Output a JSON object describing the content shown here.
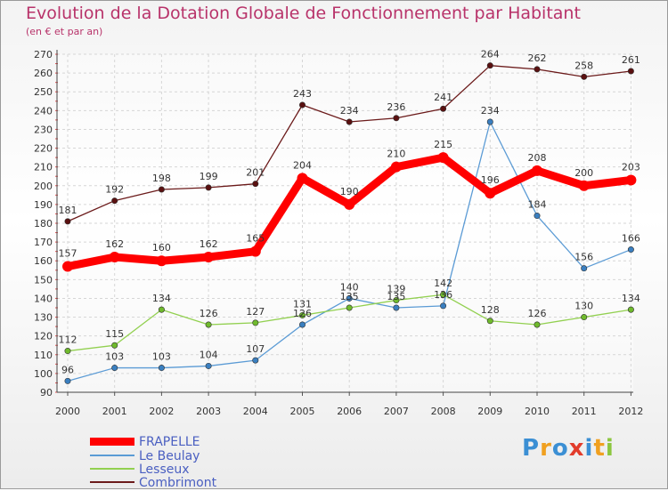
{
  "chart_data": {
    "type": "line",
    "title": "Evolution de la Dotation Globale de Fonctionnement par Habitant",
    "subtitle": "(en € et par an)",
    "xlabel": "",
    "ylabel": "",
    "x": [
      "2000",
      "2001",
      "2002",
      "2003",
      "2004",
      "2005",
      "2006",
      "2007",
      "2008",
      "2009",
      "2010",
      "2011",
      "2012"
    ],
    "ylim": [
      90,
      270
    ],
    "yticks": [
      90,
      100,
      110,
      120,
      130,
      140,
      150,
      160,
      170,
      180,
      190,
      200,
      210,
      220,
      230,
      240,
      250,
      260,
      270
    ],
    "grid": true,
    "series": [
      {
        "name": "FRAPELLE",
        "color": "#ff0000",
        "values": [
          157,
          162,
          160,
          162,
          165,
          204,
          190,
          210,
          215,
          196,
          208,
          200,
          203
        ]
      },
      {
        "name": "Le Beulay",
        "color": "#5b9bd5",
        "values": [
          96,
          103,
          103,
          104,
          107,
          126,
          140,
          135,
          136,
          234,
          184,
          156,
          166
        ]
      },
      {
        "name": "Lesseux",
        "color": "#92d050",
        "values": [
          112,
          115,
          134,
          126,
          127,
          131,
          135,
          139,
          142,
          128,
          126,
          130,
          134
        ]
      },
      {
        "name": "Combrimont",
        "color": "#6b1a1a",
        "values": [
          181,
          192,
          198,
          199,
          201,
          243,
          234,
          236,
          241,
          264,
          262,
          258,
          261
        ]
      }
    ]
  },
  "logo": {
    "text": "Proxiti",
    "letters": [
      "P",
      "r",
      "o",
      "x",
      "i",
      "t",
      "i"
    ],
    "colors": [
      "#3b8fd4",
      "#f0a020",
      "#3b8fd4",
      "#e23c2b",
      "#3b8fd4",
      "#f0a020",
      "#8cc63f"
    ]
  }
}
